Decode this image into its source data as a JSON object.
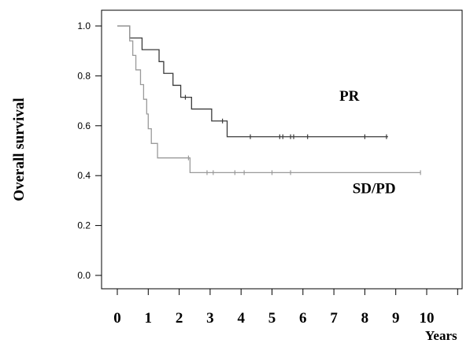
{
  "chart_data": {
    "type": "line",
    "title": "",
    "xlabel": "Years",
    "ylabel": "Overall survival",
    "xlim": [
      0,
      11
    ],
    "ylim": [
      0,
      1.0
    ],
    "x_ticks": [
      "0",
      "1",
      "2",
      "3",
      "4",
      "5",
      "6",
      "7",
      "8",
      "9",
      "10"
    ],
    "y_ticks": [
      "0.0",
      "0.2",
      "0.4",
      "0.6",
      "0.8",
      "1.0"
    ],
    "grid": false,
    "step": true,
    "series": [
      {
        "name": "PR",
        "color": "#3a3a3a",
        "steps": [
          [
            0,
            1.0
          ],
          [
            0.4,
            0.952
          ],
          [
            0.8,
            0.905
          ],
          [
            1.35,
            0.857
          ],
          [
            1.5,
            0.81
          ],
          [
            1.8,
            0.762
          ],
          [
            2.05,
            0.714
          ],
          [
            2.4,
            0.667
          ],
          [
            3.05,
            0.619
          ],
          [
            3.55,
            0.556
          ],
          [
            8.75,
            0.556
          ]
        ],
        "censored": [
          [
            2.2,
            0.714
          ],
          [
            3.4,
            0.619
          ],
          [
            4.3,
            0.556
          ],
          [
            5.25,
            0.556
          ],
          [
            5.35,
            0.556
          ],
          [
            5.6,
            0.556
          ],
          [
            5.7,
            0.556
          ],
          [
            6.15,
            0.556
          ],
          [
            8.0,
            0.556
          ],
          [
            8.7,
            0.556
          ]
        ]
      },
      {
        "name": "SD/PD",
        "color": "#9a9a9a",
        "steps": [
          [
            0,
            1.0
          ],
          [
            0.4,
            0.94
          ],
          [
            0.5,
            0.882
          ],
          [
            0.6,
            0.824
          ],
          [
            0.75,
            0.765
          ],
          [
            0.85,
            0.706
          ],
          [
            0.95,
            0.647
          ],
          [
            1.0,
            0.588
          ],
          [
            1.1,
            0.529
          ],
          [
            1.3,
            0.471
          ],
          [
            2.35,
            0.412
          ],
          [
            9.8,
            0.412
          ]
        ],
        "censored": [
          [
            2.3,
            0.471
          ],
          [
            2.9,
            0.412
          ],
          [
            3.1,
            0.412
          ],
          [
            3.8,
            0.412
          ],
          [
            4.1,
            0.412
          ],
          [
            5.0,
            0.412
          ],
          [
            5.6,
            0.412
          ],
          [
            9.8,
            0.412
          ]
        ]
      }
    ],
    "annotations": [
      {
        "text": "PR",
        "x": 7.5,
        "y": 0.7
      },
      {
        "text": "SD/PD",
        "x": 8.3,
        "y": 0.33
      }
    ]
  }
}
